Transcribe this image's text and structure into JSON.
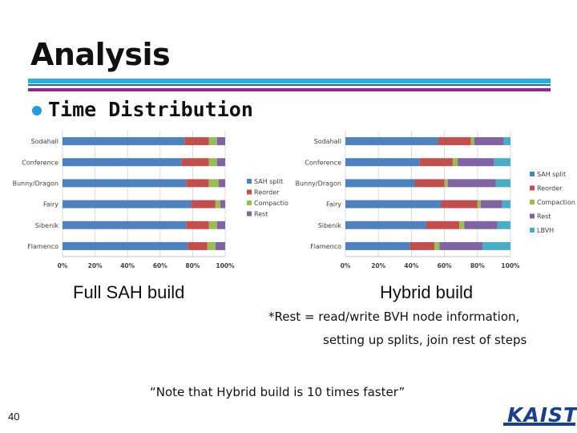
{
  "slide": {
    "title": "Analysis",
    "bullet": "Time Distribution",
    "caption_left": "Full SAH build",
    "caption_right": "Hybrid build",
    "note_line1": "*Rest = read/write BVH node information,",
    "note_line2": "setting up splits, join rest of steps",
    "quote": "“Note that Hybrid build is 10 times faster”",
    "page_number": "40",
    "logo_text": "KAIST"
  },
  "colors": {
    "SAH split": "#4f81bd",
    "Reorder": "#c0504d",
    "Compaction": "#9bbb59",
    "Rest": "#8064a2",
    "LBVH": "#4bacc6",
    "accent_blue": "#2eaed6",
    "accent_purple": "#8e2a8c"
  },
  "chart_data": [
    {
      "type": "bar",
      "orientation": "horizontal",
      "stacked": "percent",
      "categories": [
        "Sodahall",
        "Conference",
        "Bunny/Dragon",
        "Fairy",
        "Sibenik",
        "Flamenco"
      ],
      "series": [
        {
          "name": "SAH split",
          "values": [
            75,
            73,
            76,
            79,
            76,
            77
          ]
        },
        {
          "name": "Reorder",
          "values": [
            15,
            17,
            14,
            15,
            14,
            12
          ]
        },
        {
          "name": "Compaction",
          "values": [
            5,
            5,
            6,
            3,
            5,
            5
          ]
        },
        {
          "name": "Rest",
          "values": [
            5,
            5,
            4,
            3,
            5,
            6
          ]
        }
      ],
      "xticks": [
        "0%",
        "20%",
        "40%",
        "60%",
        "80%",
        "100%"
      ],
      "xlim": [
        0,
        100
      ],
      "grid": true,
      "legend": "right"
    },
    {
      "type": "bar",
      "orientation": "horizontal",
      "stacked": "percent",
      "categories": [
        "Sodahall",
        "Conference",
        "Bunny/Dragon",
        "Fairy",
        "Sibenik",
        "Flamenco"
      ],
      "series": [
        {
          "name": "SAH split",
          "values": [
            56,
            45,
            42,
            58,
            49,
            39
          ]
        },
        {
          "name": "Reorder",
          "values": [
            20,
            20,
            18,
            22,
            20,
            15
          ]
        },
        {
          "name": "Compaction",
          "values": [
            2,
            3,
            2,
            2,
            3,
            3
          ]
        },
        {
          "name": "Rest",
          "values": [
            18,
            22,
            29,
            13,
            20,
            26
          ]
        },
        {
          "name": "LBVH",
          "values": [
            4,
            10,
            9,
            5,
            8,
            17
          ]
        }
      ],
      "xticks": [
        "0%",
        "20%",
        "40%",
        "60%",
        "80%",
        "100%"
      ],
      "xlim": [
        0,
        100
      ],
      "grid": true,
      "legend": "right"
    }
  ]
}
